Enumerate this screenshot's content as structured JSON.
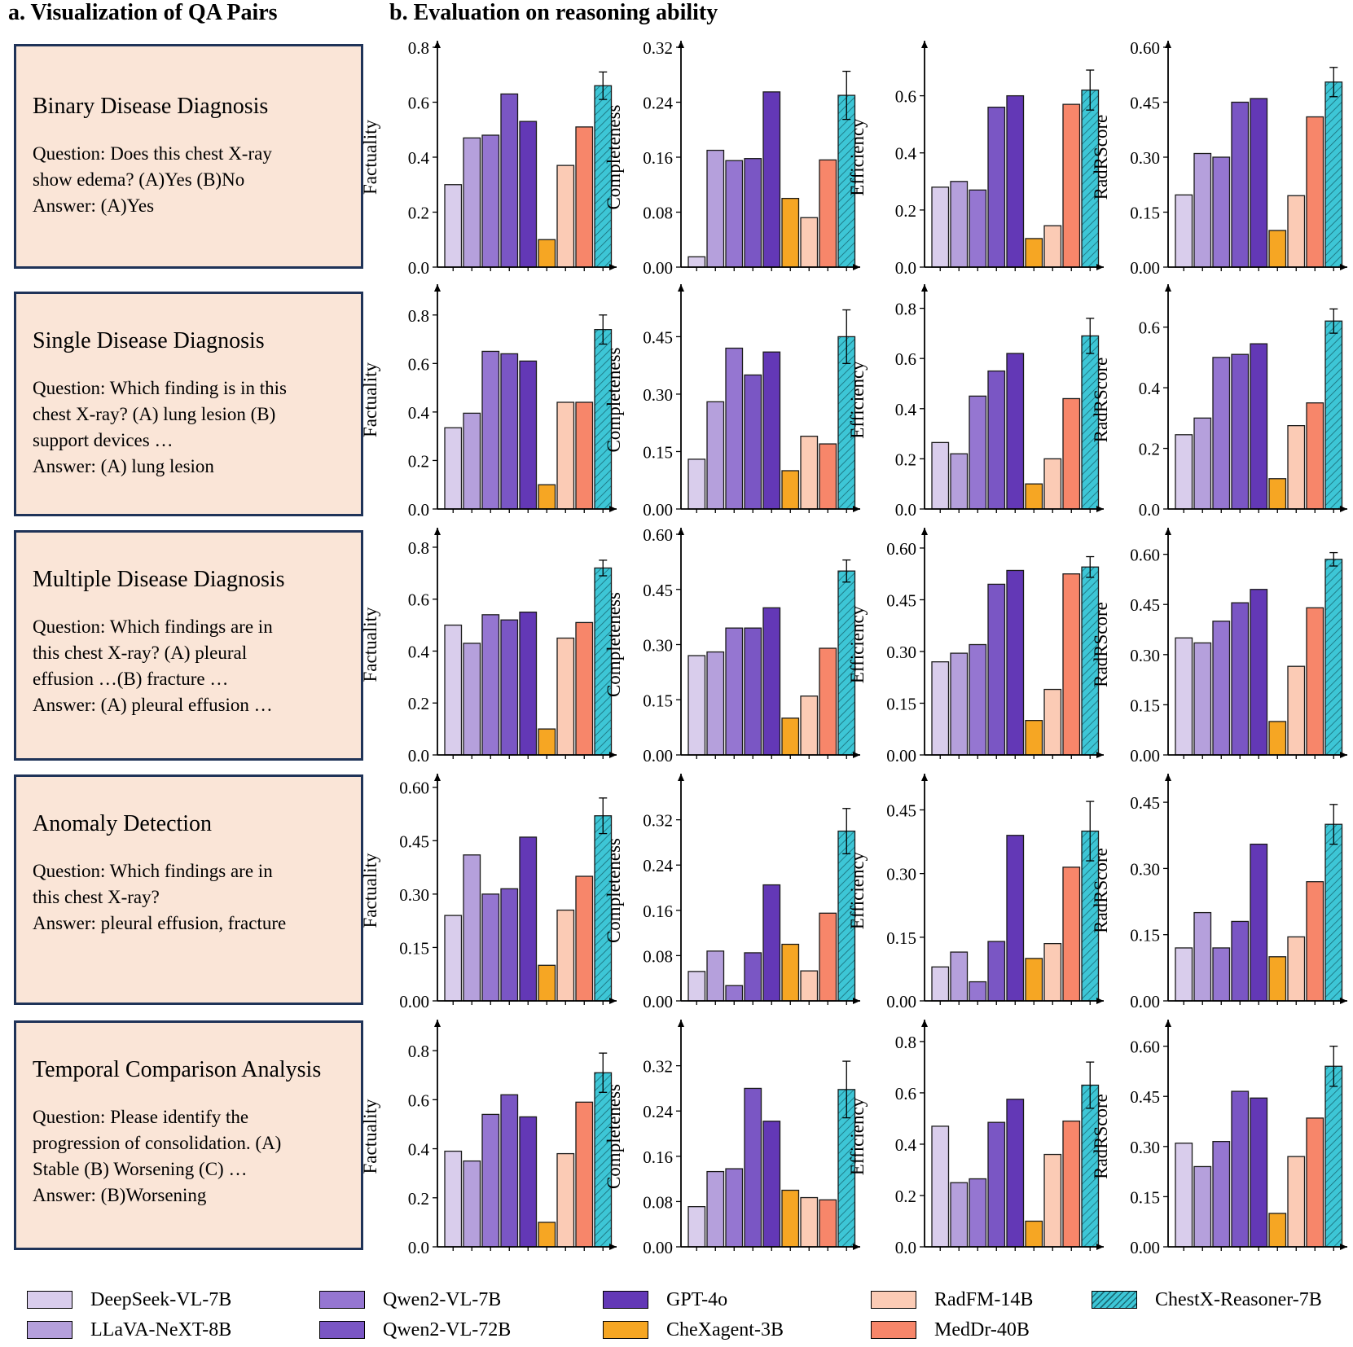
{
  "section_a_title": "a. Visualization of QA Pairs",
  "section_b_title": "b. Evaluation on reasoning ability",
  "qa_pairs": [
    {
      "title": "Binary Disease Diagnosis",
      "lines": [
        "Question: Does this chest X-ray",
        "show edema? (A)Yes  (B)No",
        "Answer: (A)Yes"
      ]
    },
    {
      "title": "Single Disease Diagnosis",
      "lines": [
        "Question: Which finding is in this",
        "chest X-ray? (A) lung lesion (B)",
        "support devices  …",
        "Answer: (A) lung lesion"
      ]
    },
    {
      "title": "Multiple Disease Diagnosis",
      "lines": [
        "Question: Which findings are in",
        "this chest X-ray? (A) pleural",
        "effusion …(B) fracture …",
        "Answer: (A) pleural effusion …"
      ]
    },
    {
      "title": "Anomaly Detection",
      "lines": [
        "Question: Which findings are in",
        "this chest X-ray?",
        "Answer: pleural effusion, fracture"
      ]
    },
    {
      "title": "Temporal Comparison Analysis",
      "lines": [
        "Question: Please identify the",
        "progression of consolidation. (A)",
        "Stable (B) Worsening (C) …",
        "Answer: (B)Worsening"
      ]
    }
  ],
  "legend": [
    {
      "label": "DeepSeek-VL-7B",
      "color": "#d9cdec",
      "hatch": false
    },
    {
      "label": "LLaVA-NeXT-8B",
      "color": "#b5a0dc",
      "hatch": false
    },
    {
      "label": "Qwen2-VL-7B",
      "color": "#9576d1",
      "hatch": false
    },
    {
      "label": "Qwen2-VL-72B",
      "color": "#7a56c4",
      "hatch": false
    },
    {
      "label": "GPT-4o",
      "color": "#6338b6",
      "hatch": false
    },
    {
      "label": "CheXagent-3B",
      "color": "#f6a623",
      "hatch": false
    },
    {
      "label": "RadFM-14B",
      "color": "#fbcbb5",
      "hatch": false
    },
    {
      "label": "MedDr-40B",
      "color": "#f7866a",
      "hatch": false
    },
    {
      "label": "ChestX-Reasoner-7B",
      "color": "#3dc6d6",
      "hatch": true
    }
  ],
  "chart_data": [
    {
      "type": "bar",
      "task": "Binary Disease Diagnosis",
      "ylabel": "Factuality",
      "ylim": [
        0,
        0.8
      ],
      "yticks": [
        "0.0",
        "0.2",
        "0.4",
        "0.6",
        "0.8"
      ],
      "values": [
        0.3,
        0.47,
        0.48,
        0.63,
        0.53,
        0.1,
        0.37,
        0.51,
        0.66
      ],
      "error": 0.05
    },
    {
      "type": "bar",
      "task": "Binary Disease Diagnosis",
      "ylabel": "Completeness",
      "ylim": [
        0,
        0.32
      ],
      "yticks": [
        "0.00",
        "0.08",
        "0.16",
        "0.24",
        "0.32"
      ],
      "values": [
        0.015,
        0.17,
        0.155,
        0.158,
        0.255,
        0.1,
        0.072,
        0.156,
        0.25
      ],
      "error": 0.035
    },
    {
      "type": "bar",
      "task": "Binary Disease Diagnosis",
      "ylabel": "Efficiency",
      "ylim": [
        0,
        0.77
      ],
      "yticks": [
        "0.0",
        "0.2",
        "0.4",
        "0.6"
      ],
      "values": [
        0.28,
        0.3,
        0.27,
        0.56,
        0.6,
        0.1,
        0.145,
        0.57,
        0.62
      ],
      "error": 0.07
    },
    {
      "type": "bar",
      "task": "Binary Disease Diagnosis",
      "ylabel": "RadRScore",
      "ylim": [
        0,
        0.6
      ],
      "yticks": [
        "0.00",
        "0.15",
        "0.30",
        "0.45",
        "0.60"
      ],
      "values": [
        0.197,
        0.31,
        0.3,
        0.45,
        0.46,
        0.1,
        0.195,
        0.41,
        0.505
      ],
      "error": 0.04
    },
    {
      "type": "bar",
      "task": "Single Disease Diagnosis",
      "ylabel": "Factuality",
      "ylim": [
        0,
        0.9
      ],
      "yticks": [
        "0.0",
        "0.2",
        "0.4",
        "0.6",
        "0.8"
      ],
      "values": [
        0.335,
        0.395,
        0.65,
        0.64,
        0.61,
        0.1,
        0.44,
        0.44,
        0.74
      ],
      "error": 0.06
    },
    {
      "type": "bar",
      "task": "Single Disease Diagnosis",
      "ylabel": "Completeness",
      "ylim": [
        0,
        0.57
      ],
      "yticks": [
        "0.00",
        "0.15",
        "0.30",
        "0.45"
      ],
      "values": [
        0.13,
        0.28,
        0.42,
        0.35,
        0.41,
        0.1,
        0.19,
        0.17,
        0.45
      ],
      "error": 0.07
    },
    {
      "type": "bar",
      "task": "Single Disease Diagnosis",
      "ylabel": "Efficiency",
      "ylim": [
        0,
        0.87
      ],
      "yticks": [
        "0.0",
        "0.2",
        "0.4",
        "0.6",
        "0.8"
      ],
      "values": [
        0.265,
        0.22,
        0.45,
        0.55,
        0.62,
        0.1,
        0.2,
        0.44,
        0.69
      ],
      "error": 0.07
    },
    {
      "type": "bar",
      "task": "Single Disease Diagnosis",
      "ylabel": "RadRScore",
      "ylim": [
        0,
        0.72
      ],
      "yticks": [
        "0.0",
        "0.2",
        "0.4",
        "0.6"
      ],
      "values": [
        0.245,
        0.3,
        0.5,
        0.51,
        0.545,
        0.1,
        0.275,
        0.35,
        0.62
      ],
      "error": 0.04
    },
    {
      "type": "bar",
      "task": "Multiple Disease Diagnosis",
      "ylabel": "Factuality",
      "ylim": [
        0,
        0.85
      ],
      "yticks": [
        "0.0",
        "0.2",
        "0.4",
        "0.6",
        "0.8"
      ],
      "values": [
        0.5,
        0.43,
        0.54,
        0.52,
        0.55,
        0.1,
        0.45,
        0.51,
        0.72
      ],
      "error": 0.03
    },
    {
      "type": "bar",
      "task": "Multiple Disease Diagnosis",
      "ylabel": "Completeness",
      "ylim": [
        0,
        0.6
      ],
      "yticks": [
        "0.00",
        "0.15",
        "0.30",
        "0.45",
        "0.60"
      ],
      "values": [
        0.27,
        0.28,
        0.345,
        0.345,
        0.4,
        0.1,
        0.16,
        0.29,
        0.5
      ],
      "error": 0.03
    },
    {
      "type": "bar",
      "task": "Multiple Disease Diagnosis",
      "ylabel": "Efficiency",
      "ylim": [
        0,
        0.64
      ],
      "yticks": [
        "0.00",
        "0.15",
        "0.30",
        "0.45",
        "0.60"
      ],
      "values": [
        0.27,
        0.295,
        0.32,
        0.495,
        0.535,
        0.1,
        0.19,
        0.525,
        0.545
      ],
      "error": 0.03
    },
    {
      "type": "bar",
      "task": "Multiple Disease Diagnosis",
      "ylabel": "RadRScore",
      "ylim": [
        0,
        0.66
      ],
      "yticks": [
        "0.00",
        "0.15",
        "0.30",
        "0.45",
        "0.60"
      ],
      "values": [
        0.35,
        0.335,
        0.4,
        0.455,
        0.495,
        0.1,
        0.265,
        0.44,
        0.585
      ],
      "error": 0.02
    },
    {
      "type": "bar",
      "task": "Anomaly Detection",
      "ylabel": "Factuality",
      "ylim": [
        0,
        0.62
      ],
      "yticks": [
        "0.00",
        "0.15",
        "0.30",
        "0.45",
        "0.60"
      ],
      "values": [
        0.24,
        0.41,
        0.3,
        0.315,
        0.46,
        0.1,
        0.255,
        0.35,
        0.52
      ],
      "error": 0.05
    },
    {
      "type": "bar",
      "task": "Anomaly Detection",
      "ylabel": "Completeness",
      "ylim": [
        0,
        0.39
      ],
      "yticks": [
        "0.00",
        "0.08",
        "0.16",
        "0.24",
        "0.32"
      ],
      "values": [
        0.052,
        0.088,
        0.027,
        0.085,
        0.205,
        0.1,
        0.053,
        0.155,
        0.3
      ],
      "error": 0.04
    },
    {
      "type": "bar",
      "task": "Anomaly Detection",
      "ylabel": "Efficiency",
      "ylim": [
        0,
        0.52
      ],
      "yticks": [
        "0.00",
        "0.15",
        "0.30",
        "0.45"
      ],
      "values": [
        0.08,
        0.115,
        0.045,
        0.14,
        0.39,
        0.1,
        0.135,
        0.315,
        0.4
      ],
      "error": 0.07
    },
    {
      "type": "bar",
      "task": "Anomaly Detection",
      "ylabel": "RadRScore",
      "ylim": [
        0,
        0.5
      ],
      "yticks": [
        "0.00",
        "0.15",
        "0.30",
        "0.45"
      ],
      "values": [
        0.12,
        0.2,
        0.12,
        0.18,
        0.355,
        0.1,
        0.145,
        0.27,
        0.4
      ],
      "error": 0.045
    },
    {
      "type": "bar",
      "task": "Temporal Comparison Analysis",
      "ylabel": "Factuality",
      "ylim": [
        0,
        0.9
      ],
      "yticks": [
        "0.0",
        "0.2",
        "0.4",
        "0.6",
        "0.8"
      ],
      "values": [
        0.39,
        0.35,
        0.54,
        0.62,
        0.53,
        0.1,
        0.38,
        0.59,
        0.71
      ],
      "error": 0.08
    },
    {
      "type": "bar",
      "task": "Temporal Comparison Analysis",
      "ylabel": "Completeness",
      "ylim": [
        0,
        0.39
      ],
      "yticks": [
        "0.00",
        "0.08",
        "0.16",
        "0.24",
        "0.32"
      ],
      "values": [
        0.071,
        0.133,
        0.138,
        0.28,
        0.222,
        0.1,
        0.087,
        0.083,
        0.278
      ],
      "error": 0.05
    },
    {
      "type": "bar",
      "task": "Temporal Comparison Analysis",
      "ylabel": "Efficiency",
      "ylim": [
        0,
        0.86
      ],
      "yticks": [
        "0.0",
        "0.2",
        "0.4",
        "0.6",
        "0.8"
      ],
      "values": [
        0.47,
        0.25,
        0.265,
        0.485,
        0.575,
        0.1,
        0.36,
        0.49,
        0.63
      ],
      "error": 0.09
    },
    {
      "type": "bar",
      "task": "Temporal Comparison Analysis",
      "ylabel": "RadRScore",
      "ylim": [
        0,
        0.66
      ],
      "yticks": [
        "0.00",
        "0.15",
        "0.30",
        "0.45",
        "0.60"
      ],
      "values": [
        0.31,
        0.24,
        0.315,
        0.465,
        0.445,
        0.1,
        0.27,
        0.385,
        0.54
      ],
      "error": 0.06
    }
  ]
}
